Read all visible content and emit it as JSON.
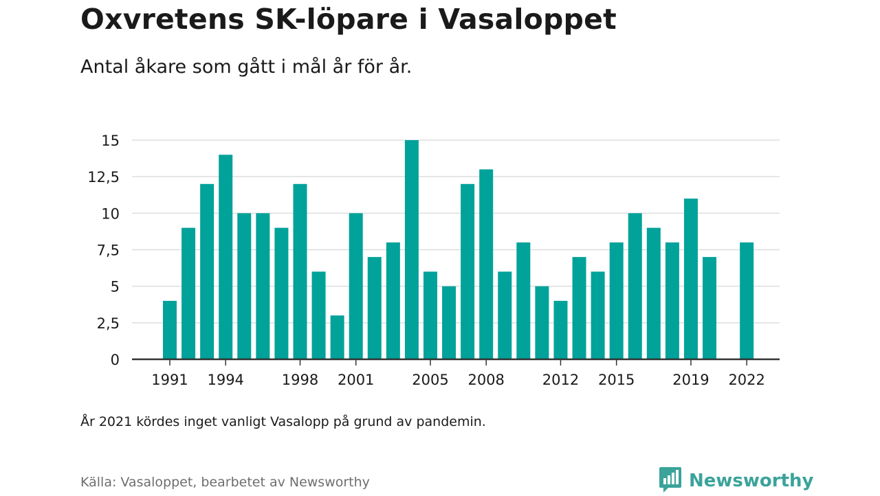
{
  "header": {
    "title": "Oxvretens SK-löpare i Vasaloppet",
    "subtitle": "Antal åkare som gått i mål år för år."
  },
  "footer": {
    "note": "År 2021 kördes inget vanligt Vasalopp på grund av pandemin.",
    "source": "Källa: Vasaloppet, bearbetet av Newsworthy",
    "brand": "Newsworthy",
    "brand_icon": "newsworthy-logo-icon",
    "brand_color": "#3aa39a"
  },
  "chart_data": {
    "type": "bar",
    "title": "Oxvretens SK-löpare i Vasaloppet",
    "subtitle": "Antal åkare som gått i mål år för år.",
    "xlabel": "",
    "ylabel": "",
    "bar_color": "#00a29a",
    "grid": true,
    "ylim": [
      0,
      15
    ],
    "y_ticks": [
      0,
      2.5,
      5,
      7.5,
      10,
      12.5,
      15
    ],
    "y_tick_labels": [
      "0",
      "2,5",
      "5",
      "7,5",
      "10",
      "12,5",
      "15"
    ],
    "x_tick_labels": [
      "1991",
      "1994",
      "1998",
      "2001",
      "2005",
      "2008",
      "2012",
      "2015",
      "2019",
      "2022"
    ],
    "categories": [
      1991,
      1992,
      1993,
      1994,
      1995,
      1996,
      1997,
      1998,
      1999,
      2000,
      2001,
      2002,
      2003,
      2004,
      2005,
      2006,
      2007,
      2008,
      2009,
      2010,
      2011,
      2012,
      2013,
      2014,
      2015,
      2016,
      2017,
      2018,
      2019,
      2020,
      2021,
      2022
    ],
    "values": [
      4,
      9,
      12,
      14,
      10,
      10,
      9,
      12,
      6,
      3,
      10,
      7,
      8,
      15,
      6,
      5,
      12,
      13,
      6,
      8,
      5,
      4,
      7,
      6,
      8,
      10,
      9,
      8,
      11,
      7,
      null,
      8
    ]
  }
}
